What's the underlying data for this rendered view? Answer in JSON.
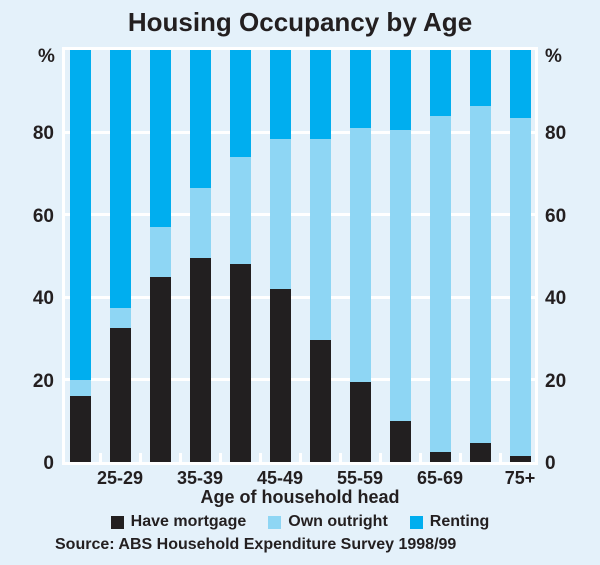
{
  "title": "Housing Occupancy by Age",
  "colors": {
    "background": "#e4f1fa",
    "mortgage": "#221f20",
    "own_outright": "#8ed6f4",
    "renting": "#00aeef",
    "gridline": "#ffffff",
    "text": "#231f20"
  },
  "y_axis": {
    "unit_left": "%",
    "unit_right": "%",
    "ticks": [
      0,
      20,
      40,
      60,
      80
    ],
    "max": 100
  },
  "x_axis": {
    "title": "Age of household head",
    "tick_labels": [
      "25-29",
      "35-39",
      "45-49",
      "55-59",
      "65-69",
      "75+"
    ]
  },
  "legend": [
    {
      "label": "Have mortgage",
      "color_key": "mortgage"
    },
    {
      "label": "Own outright",
      "color_key": "own_outright"
    },
    {
      "label": "Renting",
      "color_key": "renting"
    }
  ],
  "source": "Source: ABS Household Expenditure Survey 1998/99",
  "chart_data": {
    "type": "bar",
    "stacked": true,
    "title": "Housing Occupancy by Age",
    "xlabel": "Age of household head",
    "ylabel": "%",
    "ylim": [
      0,
      100
    ],
    "grid": true,
    "legend_position": "bottom",
    "categories": [
      "",
      "25-29",
      "",
      "35-39",
      "",
      "45-49",
      "",
      "55-59",
      "",
      "65-69",
      "",
      "75+"
    ],
    "series": [
      {
        "name": "Have mortgage",
        "values": [
          16,
          32.5,
          45,
          49.5,
          48,
          42,
          29.5,
          19.5,
          10,
          2.5,
          4.5,
          1.5
        ]
      },
      {
        "name": "Own outright",
        "values": [
          4,
          5,
          12,
          17,
          26,
          36.5,
          49,
          61.5,
          70.5,
          81.5,
          82,
          82
        ]
      },
      {
        "name": "Renting",
        "values": [
          80,
          62.5,
          43,
          33.5,
          26,
          21.5,
          21.5,
          19,
          19.5,
          16,
          13.5,
          16.5
        ]
      }
    ]
  }
}
